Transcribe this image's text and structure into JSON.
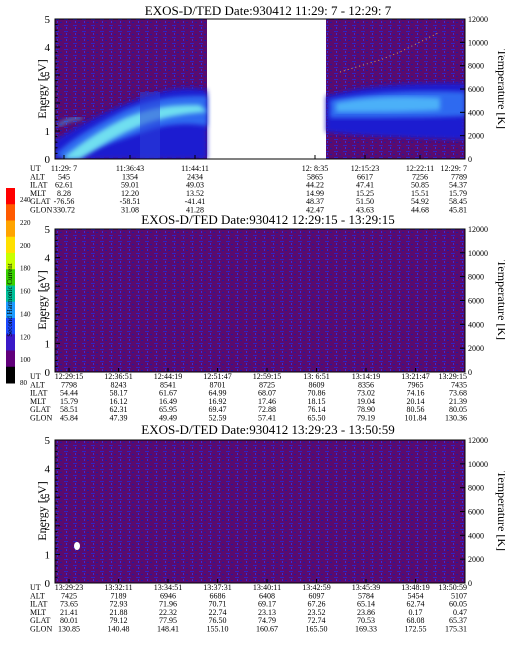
{
  "colors": {
    "bg": "#5a0b6e",
    "band_dark": "#1d1ed0",
    "band_mid": "#2f6bf0",
    "band_light": "#6fdff0",
    "noise": "#2a23c8"
  },
  "colorbar": {
    "label": "Second Harmonic Current",
    "ticks": [
      "240",
      "220",
      "200",
      "180",
      "160",
      "140",
      "120",
      "100",
      "80"
    ],
    "colors": [
      "#ff0000",
      "#ff5a00",
      "#ffa400",
      "#ffe000",
      "#c8ff00",
      "#39d000",
      "#00c09a",
      "#1c9bff",
      "#1c49ff",
      "#3a19c8",
      "#61007a",
      "#000000"
    ]
  },
  "chart_data": [
    {
      "type": "heatmap",
      "title": "EXOS-D/TED   Date:930412   11:29: 7 - 12:29: 7",
      "ylabel": "Energy [eV]",
      "y2label": "Temperature [K]",
      "ylim": [
        0,
        5
      ],
      "y2lim": [
        0,
        12000
      ],
      "yticks": [
        "0",
        "1",
        "2",
        "3",
        "4",
        "5"
      ],
      "y2ticks": [
        "0",
        "2000",
        "4000",
        "6000",
        "8000",
        "10000",
        "12000"
      ],
      "data_gap": "between 11:44:11 and 12:8:35",
      "rows": {
        "UT": [
          "11:29: 7",
          "11:36:43",
          "11:44:11",
          "12: 8:35",
          "12:15:23",
          "12:22:11",
          "12:29: 7"
        ],
        "ALT": [
          "545",
          "1354",
          "2434",
          "5865",
          "6617",
          "7256",
          "7789"
        ],
        "ILAT": [
          "62.61",
          "59.01",
          "49.03",
          "44.22",
          "47.41",
          "50.85",
          "54.37"
        ],
        "MLT": [
          "8.28",
          "12.20",
          "13.52",
          "14.99",
          "15.25",
          "15.51",
          "15.79"
        ],
        "GLAT": [
          "-76.56",
          "-58.51",
          "-41.41",
          "48.37",
          "51.50",
          "54.92",
          "58.45"
        ],
        "GLON": [
          "330.72",
          "31.08",
          "41.28",
          "42.47",
          "43.63",
          "44.68",
          "45.81"
        ]
      }
    },
    {
      "type": "heatmap",
      "title": "EXOS-D/TED   Date:930412   12:29:15 - 13:29:15",
      "ylabel": "Energy [eV]",
      "y2label": "Temperature [K]",
      "ylim": [
        0,
        5
      ],
      "y2lim": [
        0,
        12000
      ],
      "yticks": [
        "0",
        "1",
        "2",
        "3",
        "4",
        "5"
      ],
      "y2ticks": [
        "0",
        "2000",
        "4000",
        "6000",
        "8000",
        "10000",
        "12000"
      ],
      "rows": {
        "UT": [
          "12:29:15",
          "12:36:51",
          "12:44:19",
          "12:51:47",
          "12:59:15",
          "13: 6:51",
          "13:14:19",
          "13:21:47",
          "13:29:15"
        ],
        "ALT": [
          "7798",
          "8243",
          "8541",
          "8701",
          "8725",
          "8609",
          "8356",
          "7965",
          "7435"
        ],
        "ILAT": [
          "54.44",
          "58.17",
          "61.67",
          "64.99",
          "68.07",
          "70.86",
          "73.02",
          "74.16",
          "73.68"
        ],
        "MLT": [
          "15.79",
          "16.12",
          "16.49",
          "16.92",
          "17.46",
          "18.15",
          "19.04",
          "20.14",
          "21.39"
        ],
        "GLAT": [
          "58.51",
          "62.31",
          "65.95",
          "69.47",
          "72.88",
          "76.14",
          "78.90",
          "80.56",
          "80.05"
        ],
        "GLON": [
          "45.84",
          "47.39",
          "49.49",
          "52.59",
          "57.41",
          "65.50",
          "79.19",
          "101.84",
          "130.36"
        ]
      }
    },
    {
      "type": "heatmap",
      "title": "EXOS-D/TED   Date:930412   13:29:23 - 13:50:59",
      "ylabel": "Energy [eV]",
      "y2label": "Temperature [K]",
      "ylim": [
        0,
        5
      ],
      "y2lim": [
        0,
        12000
      ],
      "yticks": [
        "0",
        "1",
        "2",
        "3",
        "4",
        "5"
      ],
      "y2ticks": [
        "0",
        "2000",
        "4000",
        "6000",
        "8000",
        "10000",
        "12000"
      ],
      "rows": {
        "UT": [
          "13:29:23",
          "13:32:11",
          "13:34:51",
          "13:37:31",
          "13:40:11",
          "13:42:59",
          "13:45:39",
          "13:48:19",
          "13:50:59"
        ],
        "ALT": [
          "7425",
          "7189",
          "6946",
          "6686",
          "6408",
          "6097",
          "5784",
          "5454",
          "5107"
        ],
        "ILAT": [
          "73.65",
          "72.93",
          "71.96",
          "70.71",
          "69.17",
          "67.26",
          "65.14",
          "62.74",
          "60.05"
        ],
        "MLT": [
          "21.41",
          "21.88",
          "22.32",
          "22.74",
          "23.13",
          "23.52",
          "23.86",
          "0.17",
          "0.47"
        ],
        "GLAT": [
          "80.01",
          "79.12",
          "77.95",
          "76.50",
          "74.79",
          "72.74",
          "70.53",
          "68.08",
          "65.37"
        ],
        "GLON": [
          "130.85",
          "140.48",
          "148.41",
          "155.10",
          "160.67",
          "165.50",
          "169.33",
          "172.55",
          "175.31"
        ]
      }
    }
  ]
}
